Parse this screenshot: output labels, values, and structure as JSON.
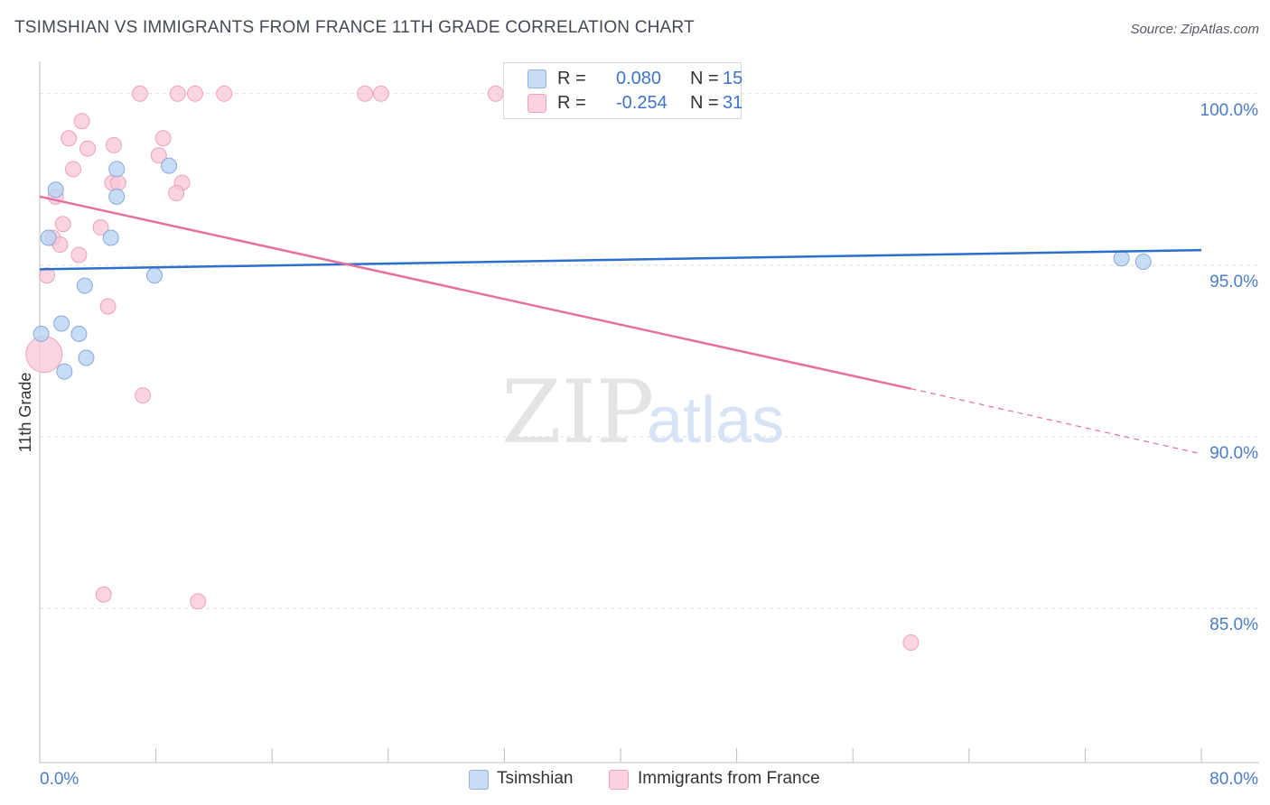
{
  "header": {
    "title": "TSIMSHIAN VS IMMIGRANTS FROM FRANCE 11TH GRADE CORRELATION CHART",
    "source": "Source: ZipAtlas.com"
  },
  "watermark": {
    "zip": "ZIP",
    "atlas": "atlas"
  },
  "legend_top": {
    "rows": [
      {
        "r_label": "R =",
        "r_value": "0.080",
        "n_label": "N =",
        "n_value": "15",
        "color": "#a9c8f0"
      },
      {
        "r_label": "R =",
        "r_value": "-0.254",
        "n_label": "N =",
        "n_value": "31",
        "color": "#f6b6c9"
      }
    ]
  },
  "legend_bottom": {
    "items": [
      {
        "label": "Tsimshian",
        "color": "#a9c8f0"
      },
      {
        "label": "Immigrants from France",
        "color": "#f6b6c9"
      }
    ]
  },
  "colors": {
    "blue_fill": "#b9d3f3",
    "blue_line": "#2c6fd0",
    "pink_fill": "#f8c6d5",
    "pink_line": "#e5709b",
    "axis_text": "#4a7cc7",
    "grid": "#dddddd"
  },
  "chart_data": {
    "type": "scatter",
    "title": "TSIMSHIAN VS IMMIGRANTS FROM FRANCE 11TH GRADE CORRELATION CHART",
    "xlabel": "",
    "ylabel": "11th Grade",
    "xlim": [
      0,
      80
    ],
    "ylim": [
      80.5,
      101.1
    ],
    "x_tick_labels": [
      {
        "value": 0,
        "label": "0.0%"
      },
      {
        "value": 80,
        "label": "80.0%"
      }
    ],
    "y_ticks": [
      {
        "value": 100,
        "label": "100.0%"
      },
      {
        "value": 95,
        "label": "95.0%"
      },
      {
        "value": 90,
        "label": "90.0%"
      },
      {
        "value": 85,
        "label": "85.0%"
      }
    ],
    "series": [
      {
        "name": "Tsimshian",
        "r": 0.08,
        "n": 15,
        "points": [
          [
            0.6,
            95.8
          ],
          [
            1.1,
            97.2
          ],
          [
            5.3,
            97.8
          ],
          [
            8.9,
            97.9
          ],
          [
            5.3,
            97.0
          ],
          [
            4.9,
            95.8
          ],
          [
            3.1,
            94.4
          ],
          [
            7.9,
            94.7
          ],
          [
            1.5,
            93.3
          ],
          [
            2.7,
            93.0
          ],
          [
            0.1,
            93.0
          ],
          [
            3.2,
            92.3
          ],
          [
            1.7,
            91.9
          ],
          [
            74.5,
            95.2
          ],
          [
            76.0,
            95.1
          ]
        ],
        "trend": {
          "x": [
            0,
            80
          ],
          "y": [
            94.88,
            95.44
          ]
        }
      },
      {
        "name": "Immigrants from France",
        "r": -0.254,
        "n": 31,
        "points": [
          [
            6.9,
            100.0
          ],
          [
            9.5,
            100.0
          ],
          [
            10.7,
            100.0
          ],
          [
            12.7,
            100.0
          ],
          [
            22.4,
            100.0
          ],
          [
            23.5,
            100.0
          ],
          [
            31.4,
            100.0
          ],
          [
            2.9,
            99.2
          ],
          [
            2.0,
            98.7
          ],
          [
            8.5,
            98.7
          ],
          [
            5.1,
            98.5
          ],
          [
            3.3,
            98.4
          ],
          [
            8.2,
            98.2
          ],
          [
            2.3,
            97.8
          ],
          [
            5.0,
            97.4
          ],
          [
            5.4,
            97.4
          ],
          [
            9.8,
            97.4
          ],
          [
            1.1,
            97.0
          ],
          [
            9.4,
            97.1
          ],
          [
            1.6,
            96.2
          ],
          [
            4.2,
            96.1
          ],
          [
            0.9,
            95.8
          ],
          [
            1.4,
            95.6
          ],
          [
            2.7,
            95.3
          ],
          [
            0.5,
            94.7
          ],
          [
            4.7,
            93.8
          ],
          [
            0.3,
            92.4
          ],
          [
            7.1,
            91.2
          ],
          [
            4.4,
            85.4
          ],
          [
            10.9,
            85.2
          ],
          [
            60.0,
            84.0
          ]
        ],
        "trend": {
          "x": [
            0,
            60
          ],
          "y": [
            97.0,
            91.4
          ]
        },
        "trend_dashed": {
          "x": [
            60,
            80
          ],
          "y": [
            91.4,
            89.5
          ]
        }
      }
    ]
  }
}
